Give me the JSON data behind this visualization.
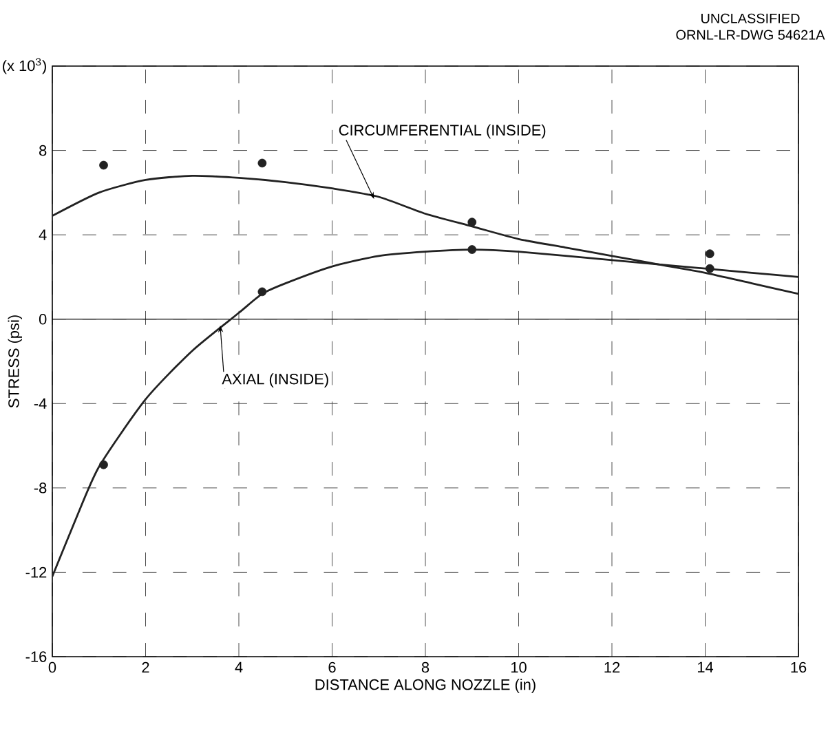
{
  "chart_data": {
    "type": "line",
    "xlabel": "DISTANCE ALONG NOZZLE (in)",
    "ylabel": "STRESS (psi)",
    "annotations": [
      "UNCLASSIFIED",
      "ORNL-LR-DWG 54621A"
    ],
    "xlim": [
      0,
      16
    ],
    "xticks": [
      0,
      2,
      4,
      6,
      8,
      10,
      12,
      14,
      16
    ],
    "ylim": [
      -16,
      12
    ],
    "yticks": [
      -16,
      -12,
      -8,
      -4,
      0,
      4,
      8,
      {
        "value": 12,
        "label": "(x 10$^{3}$)"
      }
    ],
    "grid": true,
    "series": [
      {
        "name": "CIRCUMFERENTIAL (INSIDE)",
        "color": "#222222",
        "x": [
          0,
          1,
          2,
          3,
          4,
          5,
          6,
          7,
          8,
          9,
          10,
          11,
          12,
          13,
          14,
          15,
          16
        ],
        "values": [
          4.9,
          6.0,
          6.6,
          6.8,
          6.7,
          6.5,
          6.2,
          5.8,
          5.0,
          4.4,
          3.8,
          3.4,
          3.0,
          2.6,
          2.2,
          1.7,
          1.2
        ]
      },
      {
        "name": "AXIAL (INSIDE)",
        "color": "#222222",
        "x": [
          0,
          0.5,
          1,
          2,
          3,
          4,
          4.5,
          5,
          6,
          7,
          8,
          9,
          10,
          12,
          14,
          15,
          16
        ],
        "values": [
          -12.2,
          -9.5,
          -7.0,
          -3.8,
          -1.5,
          0.3,
          1.2,
          1.7,
          2.5,
          3.0,
          3.2,
          3.3,
          3.2,
          2.8,
          2.4,
          2.2,
          2.0
        ]
      },
      {
        "type": "scatter",
        "color": "#222222",
        "x": [
          1.1,
          4.5,
          9,
          14.1
        ],
        "values": [
          7.3,
          7.4,
          4.6,
          3.1
        ]
      },
      {
        "type": "scatter",
        "color": "#222222",
        "x": [
          1.1,
          4.5,
          9,
          14.1
        ],
        "values": [
          -6.9,
          1.3,
          3.3,
          2.4
        ]
      }
    ]
  }
}
